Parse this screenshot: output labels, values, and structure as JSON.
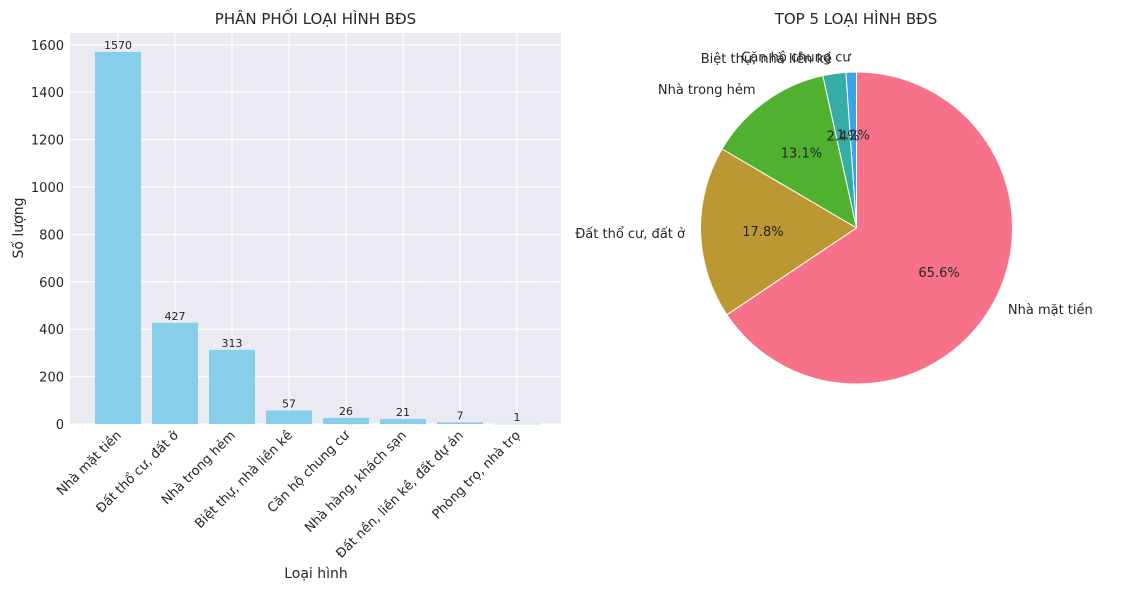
{
  "chart_data": [
    {
      "type": "bar",
      "title": "PHÂN PHỐI LOẠI HÌNH BĐS",
      "xlabel": "Loại hình",
      "ylabel": "Số lượng",
      "ylim": [
        0,
        1650
      ],
      "yticks": [
        0,
        200,
        400,
        600,
        800,
        1000,
        1200,
        1400,
        1600
      ],
      "grid": true,
      "bar_color": "#87CEEB",
      "background": "#EAEAF2",
      "categories": [
        "Nhà mặt tiền",
        "Đất thổ cư, đất ở",
        "Nhà trong hẻm",
        "Biệt thự, nhà liền kề",
        "Căn hộ chung cư",
        "Nhà hàng, khách sạn",
        "Đất nền, liền kề, đất dự án",
        "Phòng trọ, nhà trọ"
      ],
      "values": [
        1570,
        427,
        313,
        57,
        26,
        21,
        7,
        1
      ],
      "data_labels": [
        "1570",
        "427",
        "313",
        "57",
        "26",
        "21",
        "7",
        "1"
      ]
    },
    {
      "type": "pie",
      "title": "TOP 5 LOẠI HÌNH BĐS",
      "slices": [
        {
          "label": "Căn hộ chung cư",
          "value": 26,
          "pct": "1.2%",
          "color": "#3BA3EC"
        },
        {
          "label": "Biệt thự, nhà liền kề",
          "value": 57,
          "pct": "2.4%",
          "color": "#36ADA4"
        },
        {
          "label": "Nhà trong hẻm",
          "value": 313,
          "pct": "13.1%",
          "color": "#50B131"
        },
        {
          "label": "Đất thổ cư, đất ở",
          "value": 427,
          "pct": "17.8%",
          "color": "#BB9832"
        },
        {
          "label": "Nhà mặt tiền",
          "value": 1570,
          "pct": "65.6%",
          "color": "#F77189"
        }
      ]
    }
  ]
}
